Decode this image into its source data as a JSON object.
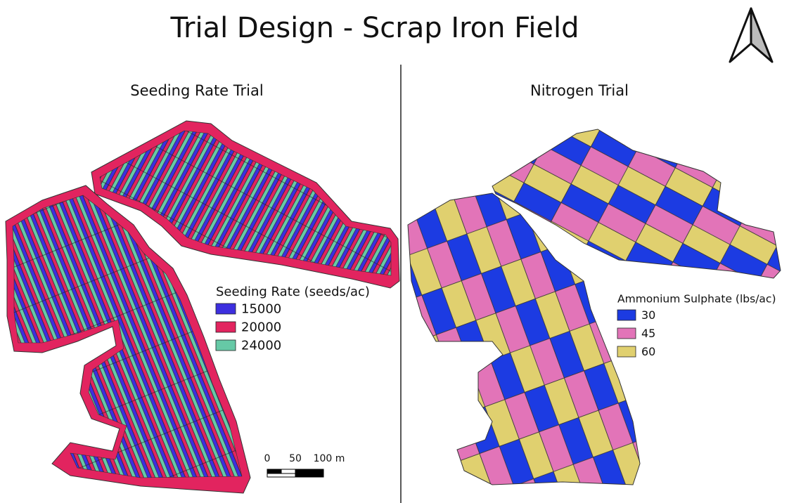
{
  "title": "Trial Design - Scrap Iron Field",
  "panels": [
    {
      "title": "Seeding Rate Trial",
      "legend": {
        "title": "Seeding Rate (seeds/ac)",
        "items": [
          {
            "label": "15000",
            "color": "#3d2fdf"
          },
          {
            "label": "20000",
            "color": "#e2245f"
          },
          {
            "label": "24000",
            "color": "#66c9a6"
          }
        ]
      }
    },
    {
      "title": "Nitrogen Trial",
      "legend": {
        "title": "Ammonium Sulphate (lbs/ac)",
        "items": [
          {
            "label": "30",
            "color": "#1c3be2"
          },
          {
            "label": "45",
            "color": "#e274b8"
          },
          {
            "label": "60",
            "color": "#e0d06f"
          }
        ]
      }
    }
  ],
  "scale_bar": {
    "labels": [
      "0",
      "50",
      "100 m"
    ]
  }
}
